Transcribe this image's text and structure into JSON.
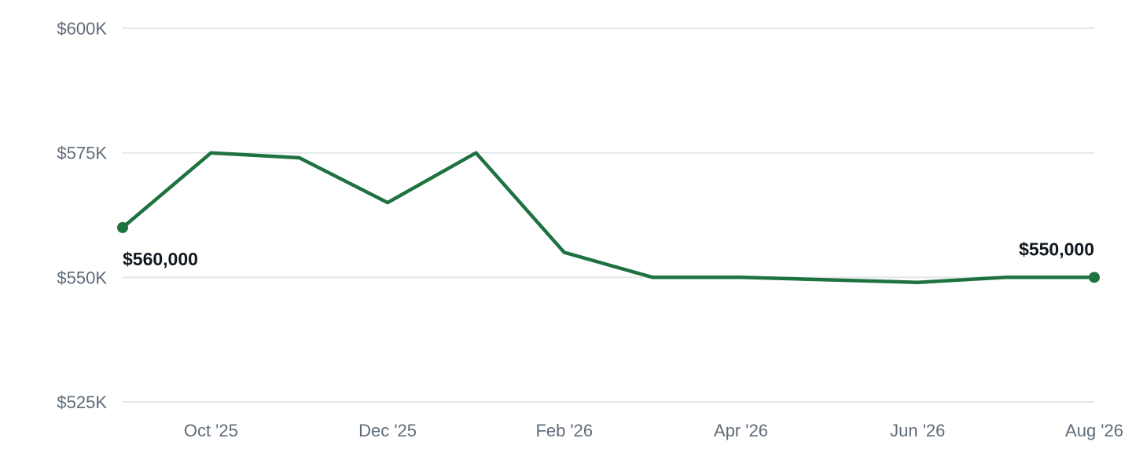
{
  "chart_data": {
    "type": "line",
    "title": "",
    "xlabel": "",
    "ylabel": "",
    "x": [
      "2025-09",
      "2025-10",
      "2025-11",
      "2025-12",
      "2026-01",
      "2026-02",
      "2026-03",
      "2026-04",
      "2026-05",
      "2026-06",
      "2026-07",
      "2026-08"
    ],
    "values": [
      560000,
      575000,
      574000,
      565000,
      575000,
      555000,
      550000,
      550000,
      549500,
      549000,
      550000,
      550000
    ],
    "ylim": [
      525000,
      600000
    ],
    "y_ticks": [
      {
        "value": 600000,
        "label": "$600K"
      },
      {
        "value": 575000,
        "label": "$575K"
      },
      {
        "value": 550000,
        "label": "$550K"
      },
      {
        "value": 525000,
        "label": "$525K"
      }
    ],
    "x_ticks": [
      {
        "x": "2025-10",
        "label": "Oct '25"
      },
      {
        "x": "2025-12",
        "label": "Dec '25"
      },
      {
        "x": "2026-02",
        "label": "Feb '26"
      },
      {
        "x": "2026-04",
        "label": "Apr '26"
      },
      {
        "x": "2026-06",
        "label": "Jun '26"
      },
      {
        "x": "2026-08",
        "label": "Aug '26"
      }
    ],
    "data_labels": [
      {
        "x": "2025-09",
        "label": "$560,000"
      },
      {
        "x": "2026-08",
        "label": "$550,000"
      }
    ],
    "line_color": "#1e7240",
    "grid": true,
    "legend": "none"
  }
}
